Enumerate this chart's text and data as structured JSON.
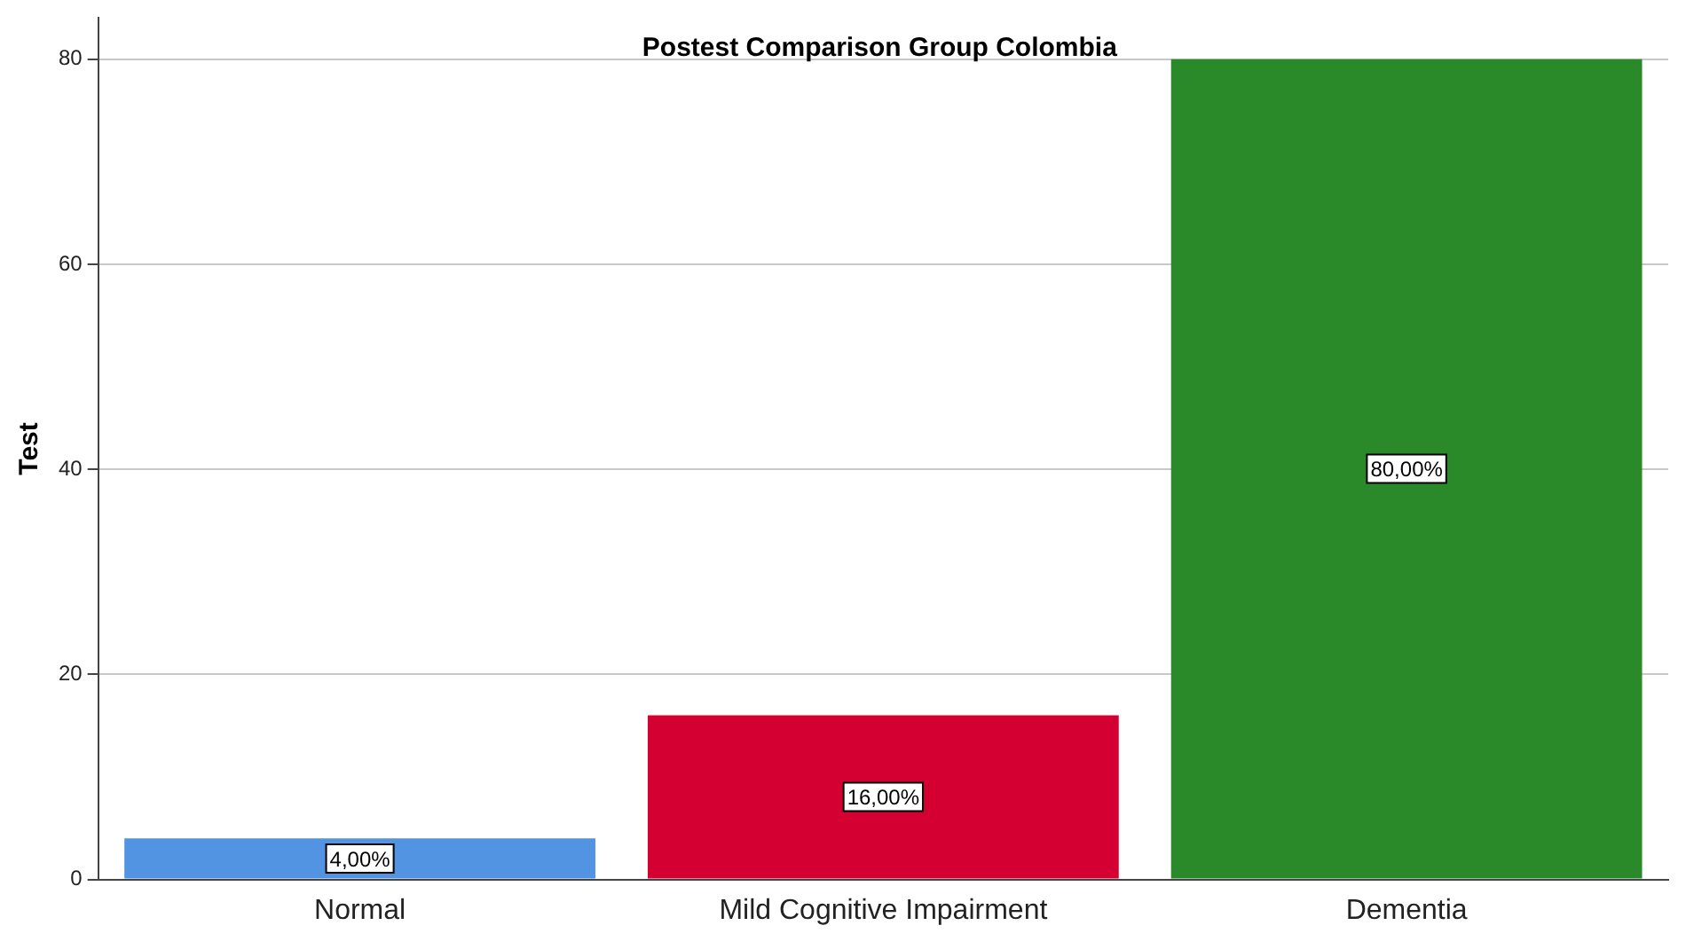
{
  "chart_data": {
    "type": "bar",
    "title": "Postest Comparison Group Colombia",
    "ylabel": "Test",
    "categories": [
      "Normal",
      "Mild Cognitive Impairment",
      "Dementia"
    ],
    "values": [
      4,
      16,
      80
    ],
    "colors": [
      "#5294e2",
      "#d50032",
      "#2a8a2a"
    ],
    "value_labels": [
      "4,00%",
      "16,00%",
      "80,00%"
    ],
    "ylim": [
      0,
      84
    ],
    "yticks": [
      0,
      20,
      40,
      60,
      80
    ],
    "grid": "y",
    "legend": false
  }
}
